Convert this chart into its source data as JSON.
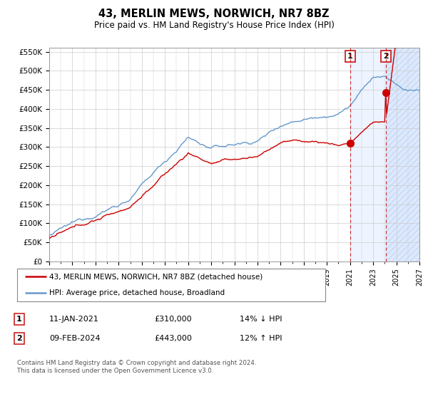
{
  "title": "43, MERLIN MEWS, NORWICH, NR7 8BZ",
  "subtitle": "Price paid vs. HM Land Registry's House Price Index (HPI)",
  "ylim": [
    0,
    560000
  ],
  "yticks": [
    0,
    50000,
    100000,
    150000,
    200000,
    250000,
    300000,
    350000,
    400000,
    450000,
    500000,
    550000
  ],
  "ytick_labels": [
    "£0",
    "£50K",
    "£100K",
    "£150K",
    "£200K",
    "£250K",
    "£300K",
    "£350K",
    "£400K",
    "£450K",
    "£500K",
    "£550K"
  ],
  "hpi_color": "#6699cc",
  "price_color": "#cc0000",
  "marker1_x": 2021.04,
  "marker1_price": 310000,
  "marker1_date": "11-JAN-2021",
  "marker1_pct": "14% ↓ HPI",
  "marker2_x": 2024.12,
  "marker2_price": 443000,
  "marker2_date": "09-FEB-2024",
  "marker2_pct": "12% ↑ HPI",
  "shade_start": 2021.04,
  "shade_end": 2027.0,
  "xmin": 1995.0,
  "xmax": 2027.0,
  "legend_line1": "43, MERLIN MEWS, NORWICH, NR7 8BZ (detached house)",
  "legend_line2": "HPI: Average price, detached house, Broadland",
  "footnote": "Contains HM Land Registry data © Crown copyright and database right 2024.\nThis data is licensed under the Open Government Licence v3.0.",
  "bg_color": "#ffffff",
  "grid_color": "#cccccc",
  "shade_color": "#cce0ff",
  "hatch_color": "#aaaacc"
}
